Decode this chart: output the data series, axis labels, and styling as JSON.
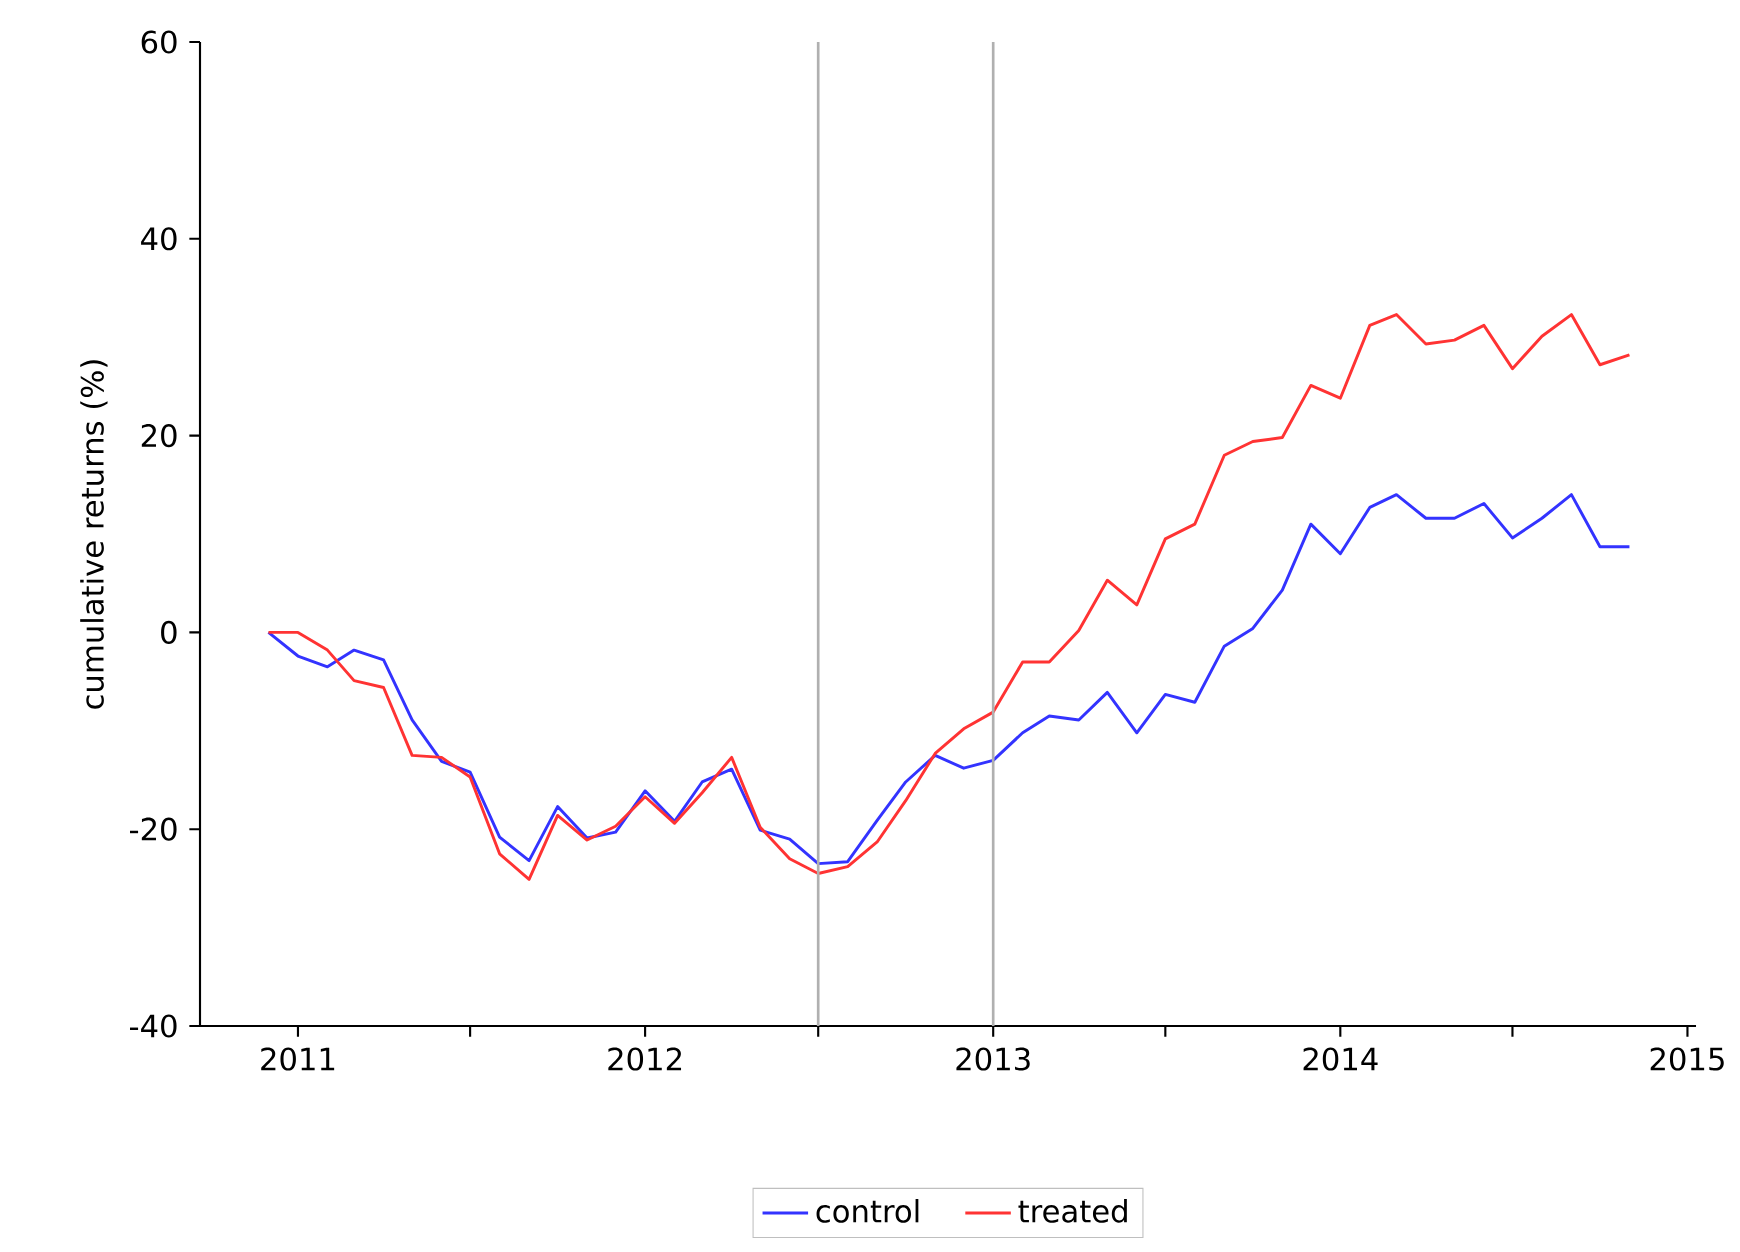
{
  "chart_data": {
    "type": "line",
    "ylabel": "cumulative returns (%)",
    "x": [
      "2010-12-01",
      "2011-01-01",
      "2011-02-01",
      "2011-03-01",
      "2011-04-01",
      "2011-05-01",
      "2011-06-01",
      "2011-07-01",
      "2011-08-01",
      "2011-09-01",
      "2011-10-01",
      "2011-11-01",
      "2011-12-01",
      "2012-01-01",
      "2012-02-01",
      "2012-03-01",
      "2012-04-01",
      "2012-05-01",
      "2012-06-01",
      "2012-07-01",
      "2012-08-01",
      "2012-09-01",
      "2012-10-01",
      "2012-11-01",
      "2012-12-01",
      "2013-01-01",
      "2013-02-01",
      "2013-03-01",
      "2013-04-01",
      "2013-05-01",
      "2013-06-01",
      "2013-07-01",
      "2013-08-01",
      "2013-09-01",
      "2013-10-01",
      "2013-11-01",
      "2013-12-01",
      "2014-01-01",
      "2014-02-01",
      "2014-03-01",
      "2014-04-01",
      "2014-05-01",
      "2014-06-01",
      "2014-07-01",
      "2014-08-01",
      "2014-09-01",
      "2014-10-01",
      "2014-11-01"
    ],
    "series": [
      {
        "name": "control",
        "color": "#3333ff",
        "values": [
          0,
          -2.4,
          -3.5,
          -1.8,
          -2.8,
          -8.9,
          -13.1,
          -14.2,
          -20.8,
          -23.2,
          -17.7,
          -20.9,
          -20.3,
          -16.1,
          -19.2,
          -15.2,
          -13.9,
          -20.1,
          -21.0,
          -23.5,
          -23.3,
          -19.1,
          -15.2,
          -12.5,
          -13.8,
          -13.0,
          -10.2,
          -8.5,
          -8.9,
          -6.1,
          -10.2,
          -6.3,
          -7.1,
          -1.4,
          0.4,
          4.3,
          11.0,
          8.0,
          12.7,
          14.0,
          11.6,
          11.6,
          13.1,
          9.6,
          11.6,
          14.0,
          8.7,
          8.7
        ]
      },
      {
        "name": "treated",
        "color": "#ff3333",
        "values": [
          0,
          0,
          -1.8,
          -4.9,
          -5.6,
          -12.5,
          -12.7,
          -14.7,
          -22.5,
          -25.1,
          -18.6,
          -21.1,
          -19.7,
          -16.7,
          -19.4,
          -16.3,
          -12.7,
          -19.8,
          -23.0,
          -24.5,
          -23.8,
          -21.3,
          -17.1,
          -12.3,
          -9.8,
          -8.1,
          -3.0,
          -3.0,
          0.2,
          5.3,
          2.8,
          9.5,
          11.0,
          18.0,
          19.4,
          19.8,
          25.1,
          23.8,
          31.2,
          32.3,
          29.3,
          29.7,
          31.2,
          26.8,
          30.1,
          32.3,
          27.2,
          28.2
        ]
      }
    ],
    "xlim": [
      "2010-09-20",
      "2015-01-10"
    ],
    "xticks": [
      {
        "value": "2011-01-01",
        "label": "2011"
      },
      {
        "value": "2011-07-01",
        "label": null
      },
      {
        "value": "2012-01-01",
        "label": "2012"
      },
      {
        "value": "2012-07-01",
        "label": null
      },
      {
        "value": "2013-01-01",
        "label": "2013"
      },
      {
        "value": "2013-07-01",
        "label": null
      },
      {
        "value": "2014-01-01",
        "label": "2014"
      },
      {
        "value": "2014-07-01",
        "label": null
      },
      {
        "value": "2015-01-01",
        "label": "2015"
      }
    ],
    "ylim": [
      -40,
      60
    ],
    "yticks": [
      -40,
      -20,
      0,
      20,
      40,
      60
    ],
    "ref_lines": [
      {
        "axis": "x",
        "value": "2012-07-01",
        "color": "#b0b0b0"
      },
      {
        "axis": "x",
        "value": "2013-01-01",
        "color": "#b0b0b0"
      }
    ],
    "grid": false,
    "legend": "bottom"
  }
}
